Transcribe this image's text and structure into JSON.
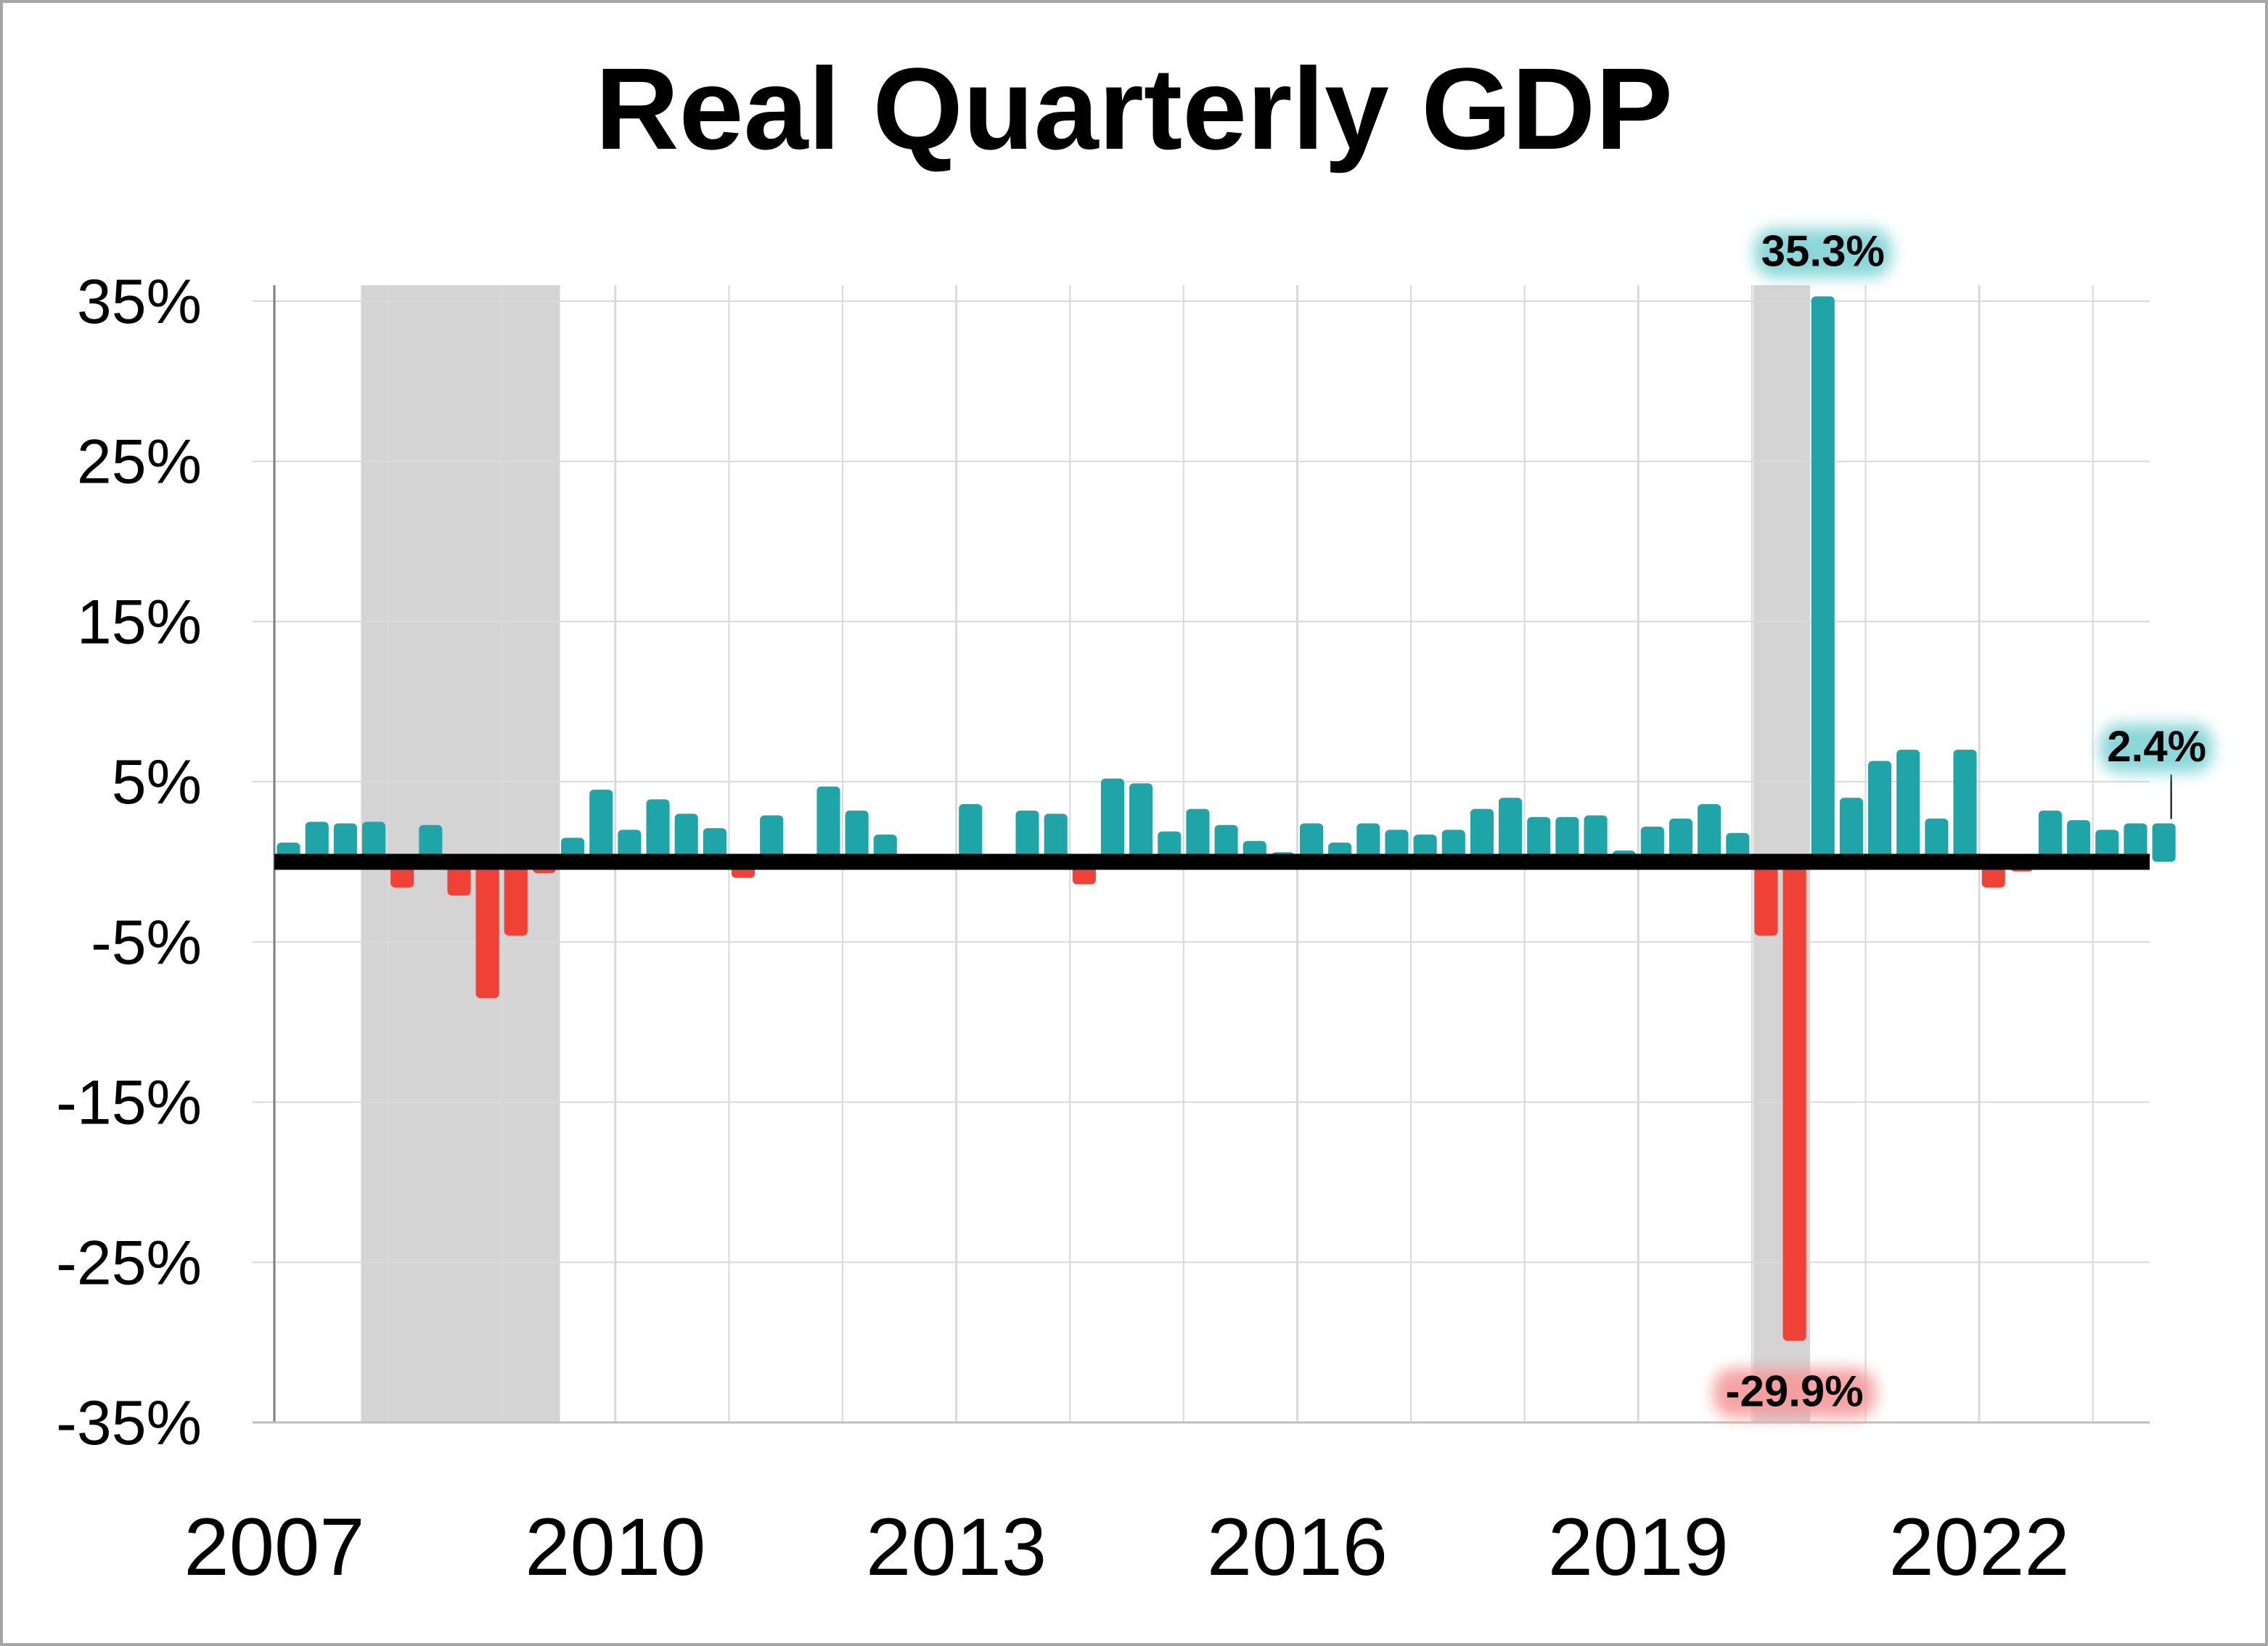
{
  "chart_data": {
    "type": "bar",
    "title": "Real Quarterly GDP",
    "xlabel": "",
    "ylabel": "",
    "ylim": [
      -35,
      35
    ],
    "yticks": [
      "35%",
      "25%",
      "15%",
      "5%",
      "-5%",
      "-15%",
      "-25%",
      "-35%"
    ],
    "ytick_values": [
      35,
      25,
      15,
      5,
      -5,
      -15,
      -25,
      -35
    ],
    "xtick_labels": [
      "2007",
      "2010",
      "2013",
      "2016",
      "2019",
      "2022"
    ],
    "grid": true,
    "colors": {
      "positive": "#1fa5a7",
      "negative": "#ef4136",
      "recession": "#d4d4d4",
      "zero_line": "#000000",
      "grid": "#d9d9d9"
    },
    "x": [
      "2007Q1",
      "2007Q2",
      "2007Q3",
      "2007Q4",
      "2008Q1",
      "2008Q2",
      "2008Q3",
      "2008Q4",
      "2009Q1",
      "2009Q2",
      "2009Q3",
      "2009Q4",
      "2010Q1",
      "2010Q2",
      "2010Q3",
      "2010Q4",
      "2011Q1",
      "2011Q2",
      "2011Q3",
      "2011Q4",
      "2012Q1",
      "2012Q2",
      "2012Q3",
      "2012Q4",
      "2013Q1",
      "2013Q2",
      "2013Q3",
      "2013Q4",
      "2014Q1",
      "2014Q2",
      "2014Q3",
      "2014Q4",
      "2015Q1",
      "2015Q2",
      "2015Q3",
      "2015Q4",
      "2016Q1",
      "2016Q2",
      "2016Q3",
      "2016Q4",
      "2017Q1",
      "2017Q2",
      "2017Q3",
      "2017Q4",
      "2018Q1",
      "2018Q2",
      "2018Q3",
      "2018Q4",
      "2019Q1",
      "2019Q2",
      "2019Q3",
      "2019Q4",
      "2020Q1",
      "2020Q2",
      "2020Q3",
      "2020Q4",
      "2021Q1",
      "2021Q2",
      "2021Q3",
      "2021Q4",
      "2022Q1",
      "2022Q2",
      "2022Q3",
      "2022Q4",
      "2023Q1",
      "2023Q2",
      "2023Q3"
    ],
    "values": [
      1.2,
      2.5,
      2.4,
      2.5,
      -1.6,
      2.3,
      -2.1,
      -8.5,
      -4.6,
      -0.7,
      1.5,
      4.5,
      2.0,
      3.9,
      3.0,
      2.1,
      -1.0,
      2.9,
      -0.1,
      4.7,
      3.2,
      1.7,
      0.5,
      0.4,
      3.6,
      0.5,
      3.2,
      3.0,
      -1.4,
      5.2,
      4.9,
      1.9,
      3.3,
      2.3,
      1.3,
      0.6,
      2.4,
      1.2,
      2.4,
      2.0,
      1.7,
      2.0,
      3.3,
      4.0,
      2.8,
      2.8,
      2.9,
      0.7,
      2.2,
      2.7,
      3.6,
      1.8,
      -4.6,
      -29.9,
      35.3,
      4.0,
      6.3,
      7.0,
      2.7,
      7.0,
      -1.6,
      -0.6,
      3.2,
      2.6,
      2.0,
      2.4,
      2.4
    ],
    "recessions": [
      {
        "start": "2007Q4",
        "end": "2009Q2"
      },
      {
        "start": "2020Q1",
        "end": "2020Q2"
      }
    ],
    "annotations": [
      {
        "text": "35.3%",
        "x": "2020Q3",
        "value": 35.3,
        "highlight": "#7fd3d5"
      },
      {
        "text": "-29.9%",
        "x": "2020Q2",
        "value": -29.9,
        "highlight": "#f59a9a"
      },
      {
        "text": "2.4%",
        "x": "2023Q3",
        "value": 2.4,
        "highlight": "#7fd3d5"
      }
    ]
  }
}
